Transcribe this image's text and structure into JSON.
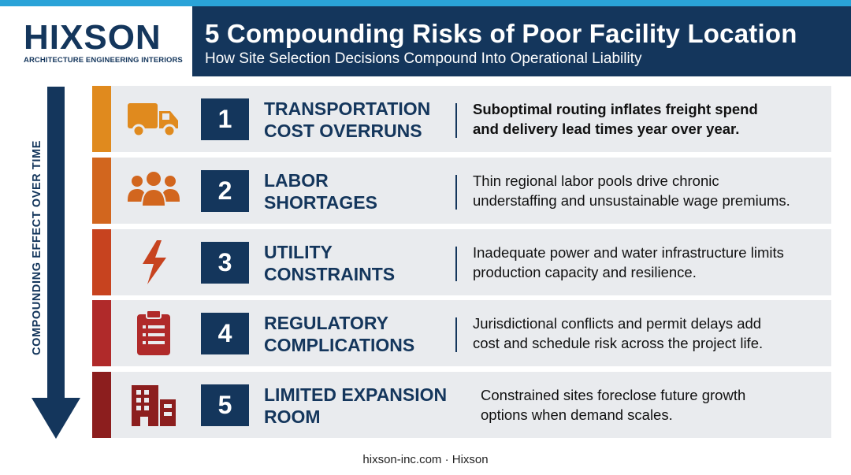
{
  "brand": {
    "name": "HIXSON",
    "tagline": "ARCHITECTURE ENGINEERING INTERIORS",
    "navy": "#14365c",
    "accent_blue": "#2aa3d8"
  },
  "header": {
    "title": "5 Compounding Risks of Poor Facility Location",
    "subtitle": "How Site Selection Decisions Compound Into Operational Liability"
  },
  "axis": {
    "label": "COMPOUNDING EFFECT OVER TIME"
  },
  "risks": [
    {
      "number": "1",
      "title_line1": "TRANSPORTATION",
      "title_line2": "COST OVERRUNS",
      "desc_line1": "Suboptimal routing inflates freight spend",
      "desc_line2": "and delivery lead times year over year.",
      "icon": "truck-icon",
      "color": "#e08a1e"
    },
    {
      "number": "2",
      "title_line1": "LABOR",
      "title_line2": "SHORTAGES",
      "desc_line1": "Thin regional labor pools drive chronic",
      "desc_line2": "understaffing and unsustainable wage premiums.",
      "icon": "people-icon",
      "color": "#d2661e"
    },
    {
      "number": "3",
      "title_line1": "UTILITY",
      "title_line2": "CONSTRAINTS",
      "desc_line1": "Inadequate power and water infrastructure limits",
      "desc_line2": "production capacity and resilience.",
      "icon": "lightning-icon",
      "color": "#c7431f"
    },
    {
      "number": "4",
      "title_line1": "REGULATORY",
      "title_line2": "COMPLICATIONS",
      "desc_line1": "Jurisdictional conflicts and permit delays add",
      "desc_line2": "cost and schedule risk across the project life.",
      "icon": "clipboard-icon",
      "color": "#b02a2a"
    },
    {
      "number": "5",
      "title_line1": "LIMITED EXPANSION",
      "title_line2": "ROOM",
      "desc_line1": "Constrained sites foreclose future growth",
      "desc_line2": "options when demand scales.",
      "icon": "building-icon",
      "color": "#8c1e1e"
    }
  ],
  "footer": {
    "text": "hixson-inc.com · Hixson"
  }
}
